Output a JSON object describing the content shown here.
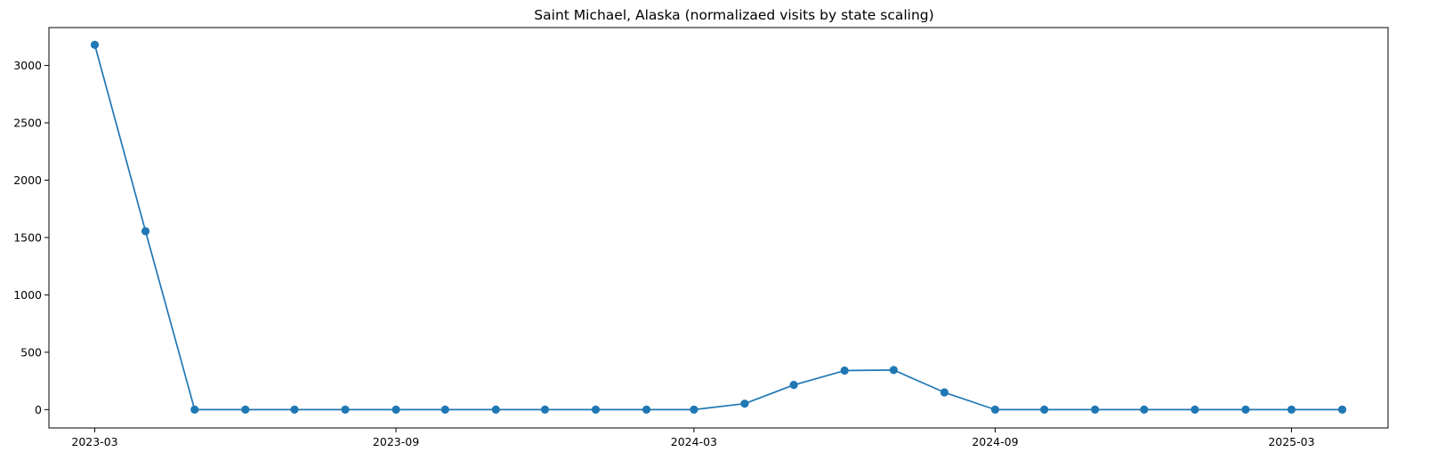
{
  "chart_data": {
    "type": "line",
    "title": "Saint Michael, Alaska (normalizaed visits by state scaling)",
    "xlabel": "",
    "ylabel": "",
    "x": [
      "2023-03-01",
      "2023-04-01",
      "2023-05-01",
      "2023-06-01",
      "2023-07-01",
      "2023-08-01",
      "2023-09-01",
      "2023-10-01",
      "2023-11-01",
      "2023-12-01",
      "2024-01-01",
      "2024-02-01",
      "2024-03-01",
      "2024-04-01",
      "2024-05-01",
      "2024-06-01",
      "2024-07-01",
      "2024-08-01",
      "2024-09-01",
      "2024-10-01",
      "2024-11-01",
      "2024-12-01",
      "2025-01-01",
      "2025-02-01",
      "2025-03-01",
      "2025-04-01"
    ],
    "series": [
      {
        "values": [
          3180,
          1555,
          0,
          0,
          0,
          0,
          0,
          0,
          0,
          0,
          0,
          0,
          0,
          52,
          215,
          340,
          345,
          150,
          0,
          0,
          0,
          0,
          0,
          0,
          0,
          0
        ]
      }
    ],
    "xlim": [
      "2023-02-01",
      "2025-04-29"
    ],
    "ylim": [
      -160,
      3330
    ],
    "x_ticks": [
      {
        "date": "2023-03-01",
        "label": "2023-03"
      },
      {
        "date": "2023-09-01",
        "label": "2023-09"
      },
      {
        "date": "2024-03-01",
        "label": "2024-03"
      },
      {
        "date": "2024-09-01",
        "label": "2024-09"
      },
      {
        "date": "2025-03-01",
        "label": "2025-03"
      }
    ],
    "y_ticks": [
      0,
      500,
      1000,
      1500,
      2000,
      2500,
      3000
    ],
    "grid": false,
    "legend": "none",
    "colors": {
      "line": "#1f77b4",
      "marker": "#1f77b4",
      "axes": "#000000"
    }
  }
}
